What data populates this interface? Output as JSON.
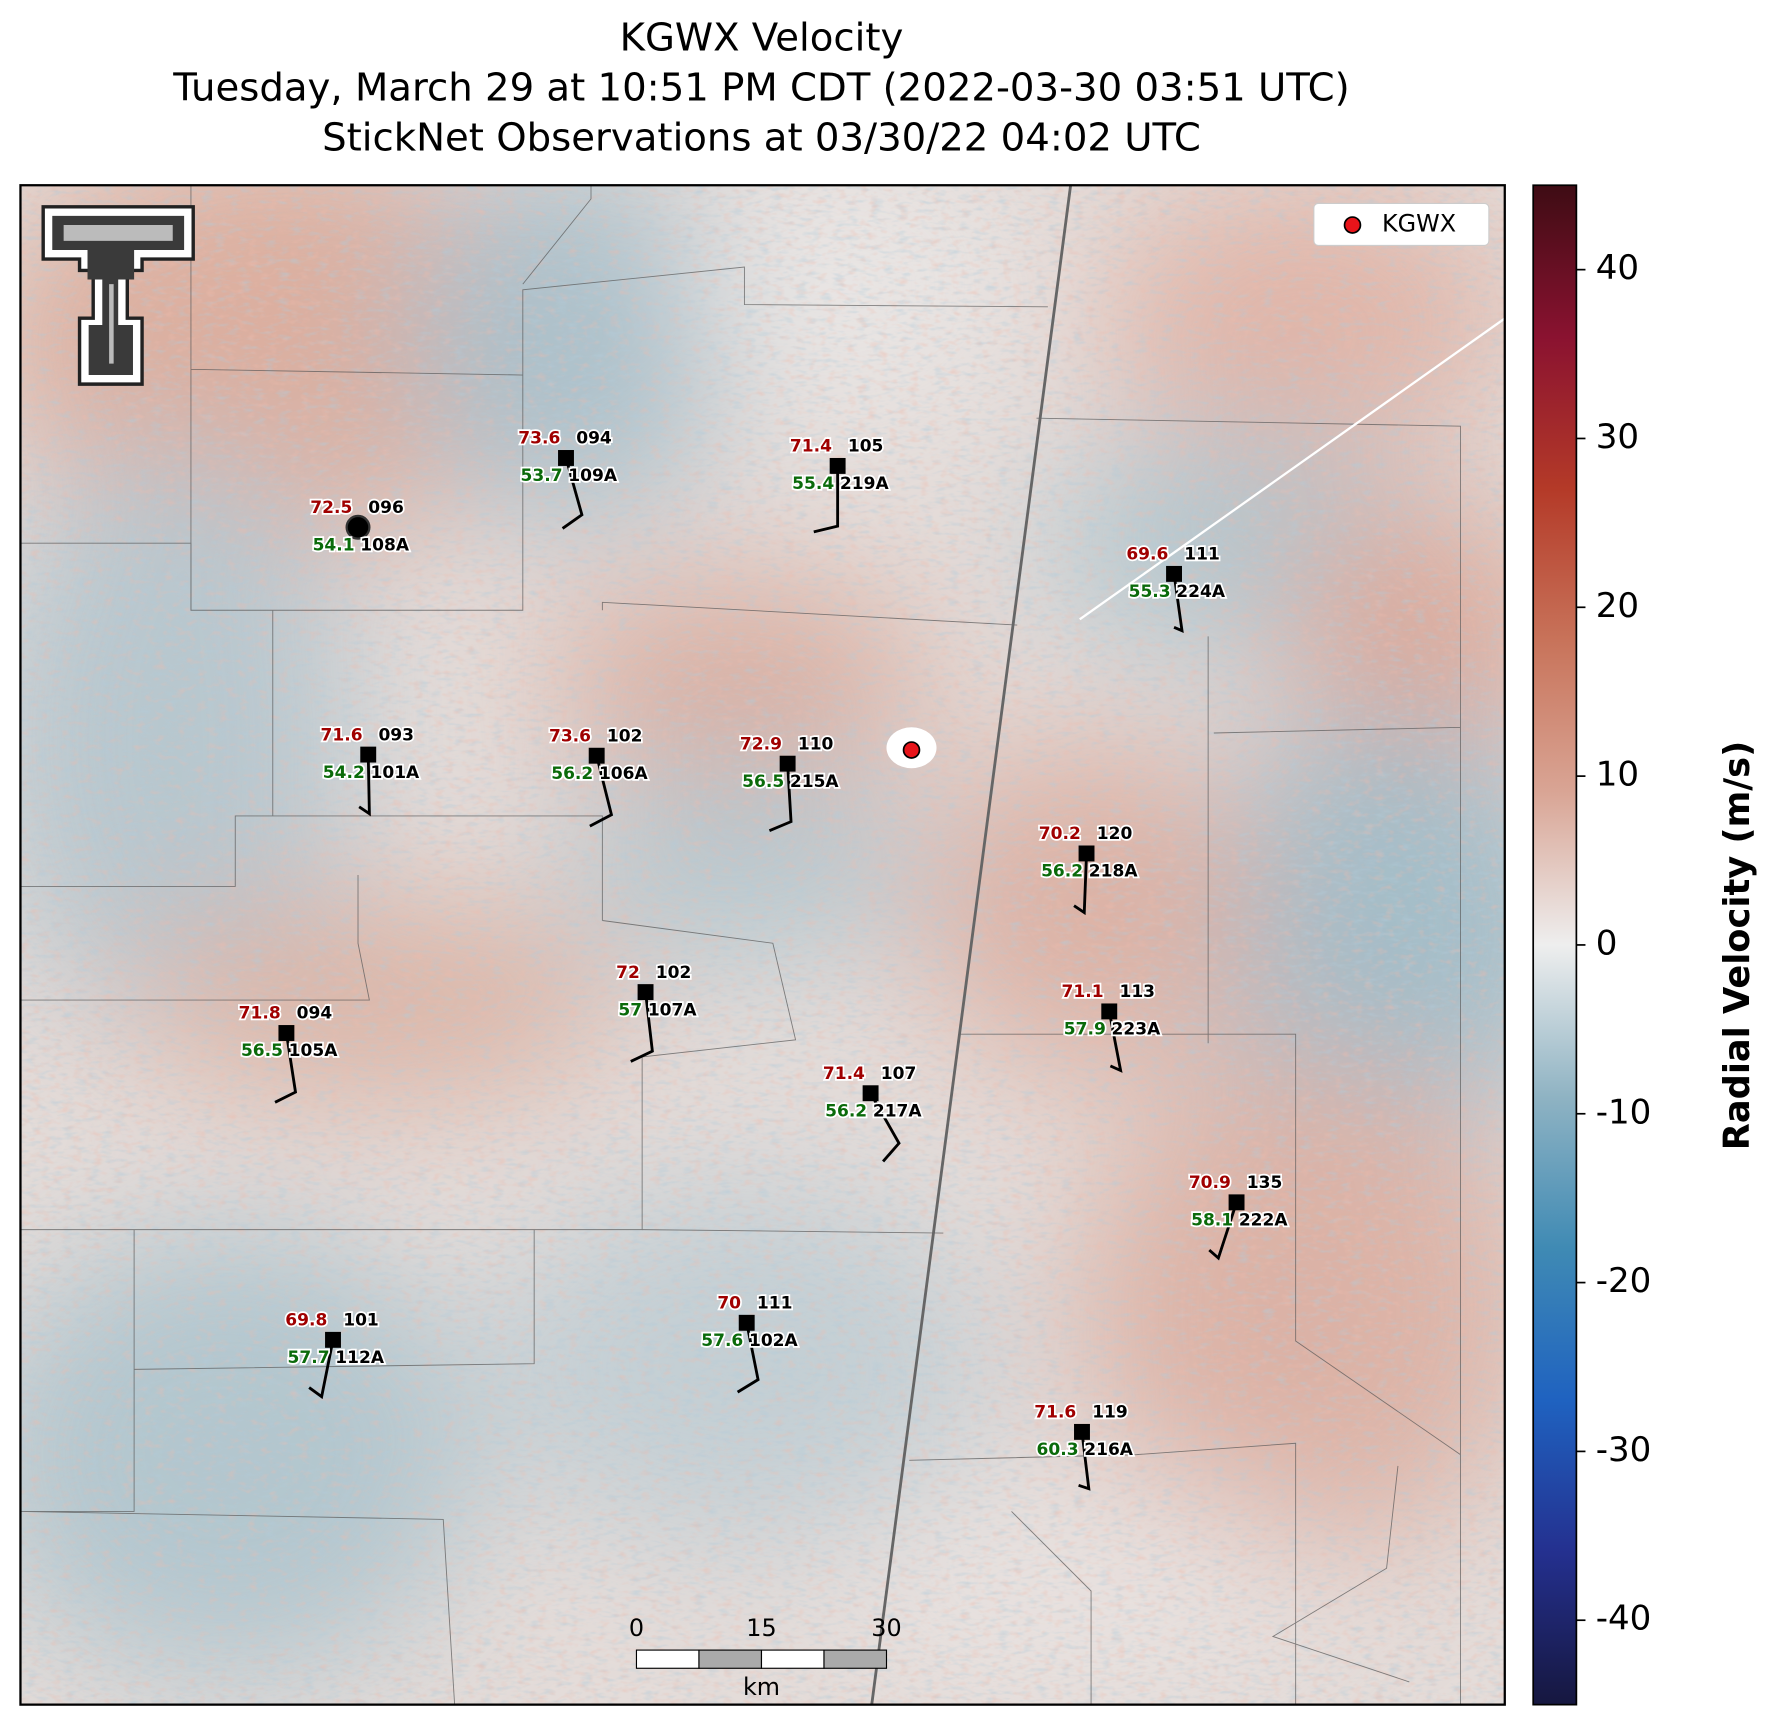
{
  "title": [
    "KGWX Velocity",
    "Tuesday, March 29 at 10:51 PM CDT (2022-03-30 03:51 UTC)",
    "StickNet Observations at 03/30/22 04:02 UTC"
  ],
  "legend": {
    "label": "KGWX",
    "color": "#e8141a"
  },
  "colorbar": {
    "label": "Radial Velocity (m/s)",
    "lim": [
      -45,
      45
    ],
    "ticks": [
      -40,
      -30,
      -20,
      -10,
      0,
      10,
      20,
      30,
      40
    ],
    "colormap": [
      "#16173f",
      "#24308f",
      "#1f62c0",
      "#3f8ab4",
      "#8fb3c3",
      "#eeeeee",
      "#d9a595",
      "#c8735a",
      "#b43a28",
      "#8a1230",
      "#3e0c14"
    ]
  },
  "scalebar": {
    "ticks": [
      0,
      15,
      30
    ],
    "unit": "km"
  },
  "stations": [
    {
      "temp": 72.5,
      "top": "096",
      "dew": 54.1,
      "id": "108A"
    },
    {
      "temp": 73.6,
      "top": "094",
      "dew": 53.7,
      "id": "109A"
    },
    {
      "temp": 71.4,
      "top": "105",
      "dew": 55.4,
      "id": "219A"
    },
    {
      "temp": 69.6,
      "top": "111",
      "dew": 55.3,
      "id": "224A"
    },
    {
      "temp": 71.6,
      "top": "093",
      "dew": 54.2,
      "id": "101A"
    },
    {
      "temp": 73.6,
      "top": "102",
      "dew": 56.2,
      "id": "106A"
    },
    {
      "temp": 72.9,
      "top": "110",
      "dew": 56.5,
      "id": "215A"
    },
    {
      "temp": 70.2,
      "top": "120",
      "dew": 56.2,
      "id": "218A"
    },
    {
      "temp": 72.0,
      "top": "102",
      "dew": 57.0,
      "id": "107A"
    },
    {
      "temp": 71.1,
      "top": "113",
      "dew": 57.9,
      "id": "223A"
    },
    {
      "temp": 71.8,
      "top": "094",
      "dew": 56.5,
      "id": "105A"
    },
    {
      "temp": 71.4,
      "top": "107",
      "dew": 56.2,
      "id": "217A"
    },
    {
      "temp": 70.9,
      "top": "135",
      "dew": 58.1,
      "id": "222A"
    },
    {
      "temp": 69.8,
      "top": "101",
      "dew": 57.7,
      "id": "112A"
    },
    {
      "temp": 70.0,
      "top": "111",
      "dew": 57.6,
      "id": "102A"
    },
    {
      "temp": 71.6,
      "top": "119",
      "dew": 60.3,
      "id": "216A"
    }
  ]
}
